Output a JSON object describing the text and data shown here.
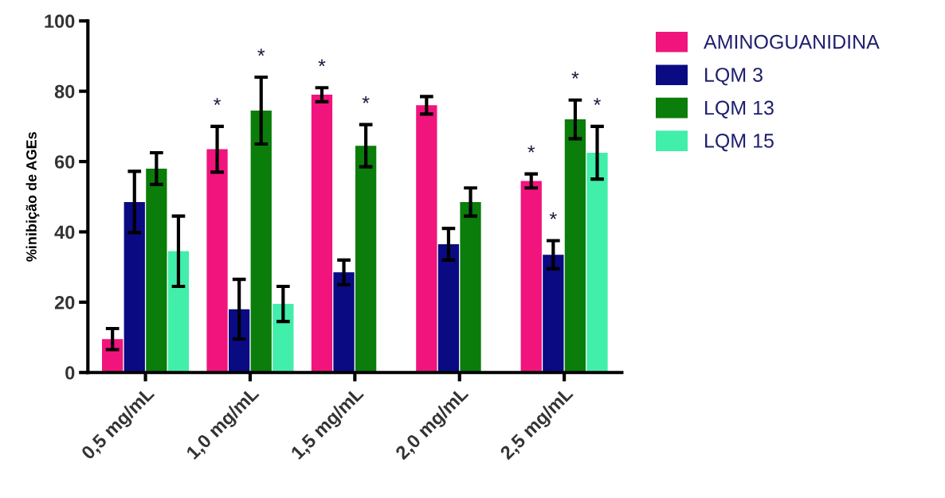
{
  "chart_data": {
    "type": "bar",
    "ylabel": "%inibição de AGEs",
    "categories": [
      "0,5 mg/mL",
      "1,0 mg/mL",
      "1,5 mg/mL",
      "2,0 mg/mL",
      "2,5 mg/mL"
    ],
    "series": [
      {
        "name": "AMINOGUANIDINA",
        "color": "#f0147c",
        "values": [
          9.5,
          63.5,
          79,
          76,
          54.5
        ],
        "errors": [
          3,
          6.5,
          2,
          2.5,
          2
        ],
        "value_labels": [
          null,
          "*",
          "*",
          null,
          "*"
        ]
      },
      {
        "name": "LQM 3",
        "color": "#0a0a82",
        "values": [
          48.5,
          18,
          28.5,
          36.5,
          33.5
        ],
        "errors": [
          8.7,
          8.5,
          3.5,
          4.5,
          4
        ],
        "value_labels": [
          null,
          null,
          null,
          null,
          "*"
        ]
      },
      {
        "name": "LQM 13",
        "color": "#0a7d0a",
        "values": [
          58,
          74.5,
          64.5,
          48.5,
          72
        ],
        "errors": [
          4.5,
          9.5,
          6,
          4,
          5.5
        ],
        "value_labels": [
          null,
          "*",
          "*",
          null,
          "*"
        ]
      },
      {
        "name": "LQM 15",
        "color": "#41eeaa",
        "values": [
          34.5,
          19.5,
          null,
          null,
          62.5
        ],
        "errors": [
          10,
          5,
          null,
          null,
          7.5
        ],
        "value_labels": [
          null,
          null,
          null,
          null,
          "*"
        ]
      }
    ],
    "ylim": [
      0,
      100
    ],
    "yticks": [
      0,
      20,
      40,
      60,
      80,
      100
    ],
    "grid": false,
    "legend": "top right"
  }
}
